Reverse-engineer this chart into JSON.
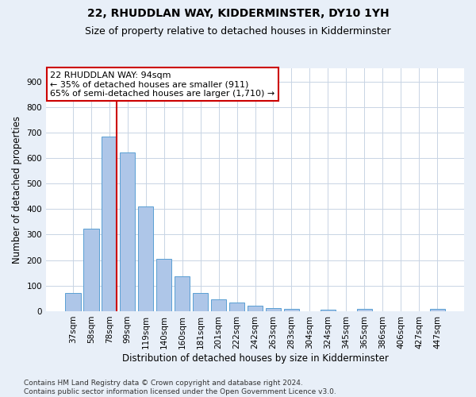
{
  "title": "22, RHUDDLAN WAY, KIDDERMINSTER, DY10 1YH",
  "subtitle": "Size of property relative to detached houses in Kidderminster",
  "xlabel": "Distribution of detached houses by size in Kidderminster",
  "ylabel": "Number of detached properties",
  "categories": [
    "37sqm",
    "58sqm",
    "78sqm",
    "99sqm",
    "119sqm",
    "140sqm",
    "160sqm",
    "181sqm",
    "201sqm",
    "222sqm",
    "242sqm",
    "263sqm",
    "283sqm",
    "304sqm",
    "324sqm",
    "345sqm",
    "365sqm",
    "386sqm",
    "406sqm",
    "427sqm",
    "447sqm"
  ],
  "values": [
    72,
    322,
    685,
    622,
    410,
    205,
    137,
    70,
    48,
    35,
    23,
    12,
    10,
    0,
    5,
    0,
    10,
    0,
    0,
    0,
    8
  ],
  "bar_color": "#aec6e8",
  "bar_edge_color": "#5a9fd4",
  "vline_color": "#cc0000",
  "annotation_line1": "22 RHUDDLAN WAY: 94sqm",
  "annotation_line2": "← 35% of detached houses are smaller (911)",
  "annotation_line3": "65% of semi-detached houses are larger (1,710) →",
  "annotation_box_color": "#ffffff",
  "annotation_box_edge": "#cc0000",
  "ylim": [
    0,
    950
  ],
  "yticks": [
    0,
    100,
    200,
    300,
    400,
    500,
    600,
    700,
    800,
    900
  ],
  "footer": "Contains HM Land Registry data © Crown copyright and database right 2024.\nContains public sector information licensed under the Open Government Licence v3.0.",
  "bg_color": "#e8eff8",
  "plot_bg_color": "#ffffff",
  "title_fontsize": 10,
  "subtitle_fontsize": 9,
  "axis_label_fontsize": 8.5,
  "tick_fontsize": 7.5,
  "footer_fontsize": 6.5
}
